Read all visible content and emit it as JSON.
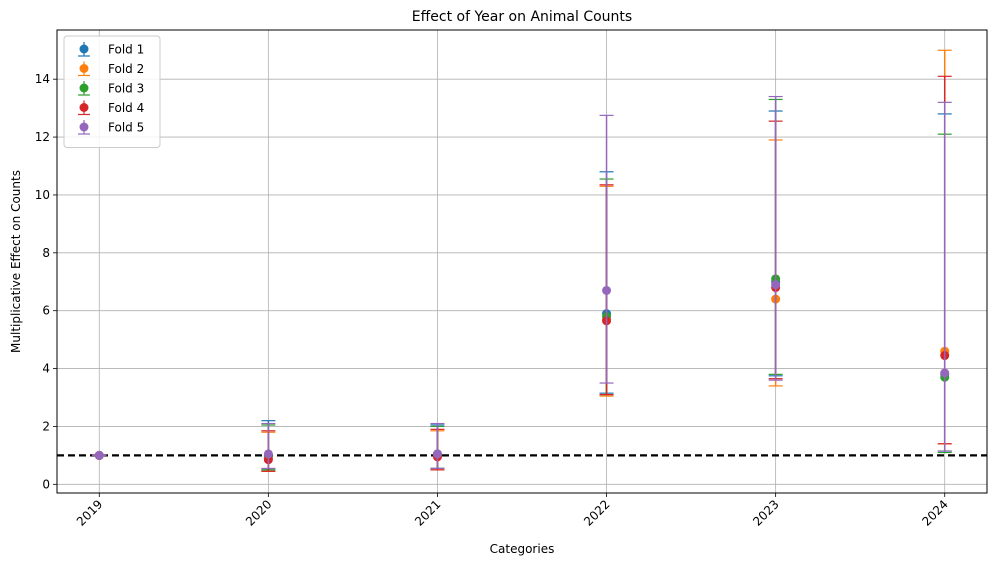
{
  "chart_data": {
    "type": "scatter",
    "title": "Effect of Year on Animal Counts",
    "xlabel": "Categories",
    "ylabel": "Multiplicative Effect on Counts",
    "categories": [
      "2019",
      "2020",
      "2021",
      "2022",
      "2023",
      "2024"
    ],
    "ylim": [
      -0.3,
      15.7
    ],
    "yticks": [
      0,
      2,
      4,
      6,
      8,
      10,
      12,
      14
    ],
    "grid": true,
    "legend_position": "top-left",
    "reference_line": {
      "y": 1,
      "style": "dashed",
      "color": "#000000"
    },
    "series": [
      {
        "name": "Fold 1",
        "color": "#1f77b4",
        "values": [
          1.0,
          0.95,
          1.0,
          5.9,
          7.0,
          3.8
        ],
        "lower": [
          1.0,
          0.5,
          0.55,
          3.15,
          3.75,
          1.15
        ],
        "upper": [
          1.0,
          2.2,
          2.05,
          10.8,
          12.9,
          12.8
        ]
      },
      {
        "name": "Fold 2",
        "color": "#ff7f0e",
        "values": [
          1.0,
          0.9,
          1.0,
          5.7,
          6.4,
          4.6
        ],
        "lower": [
          1.0,
          0.45,
          0.5,
          3.05,
          3.4,
          1.4
        ],
        "upper": [
          1.0,
          1.8,
          1.85,
          10.3,
          11.9,
          15.0
        ]
      },
      {
        "name": "Fold 3",
        "color": "#2ca02c",
        "values": [
          1.0,
          1.0,
          1.05,
          5.8,
          7.1,
          3.7
        ],
        "lower": [
          1.0,
          0.5,
          0.55,
          3.1,
          3.8,
          1.1
        ],
        "upper": [
          1.0,
          2.05,
          2.0,
          10.55,
          13.3,
          12.1
        ]
      },
      {
        "name": "Fold 4",
        "color": "#d62728",
        "values": [
          1.0,
          0.85,
          0.95,
          5.65,
          6.8,
          4.45
        ],
        "lower": [
          1.0,
          0.45,
          0.5,
          3.1,
          3.65,
          1.4
        ],
        "upper": [
          1.0,
          1.85,
          1.9,
          10.35,
          12.55,
          14.1
        ]
      },
      {
        "name": "Fold 5",
        "color": "#9467bd",
        "values": [
          1.0,
          1.05,
          1.05,
          6.7,
          6.9,
          3.85
        ],
        "lower": [
          1.0,
          0.55,
          0.55,
          3.5,
          3.6,
          1.15
        ],
        "upper": [
          1.0,
          2.1,
          2.1,
          12.75,
          13.4,
          13.2
        ]
      }
    ]
  }
}
